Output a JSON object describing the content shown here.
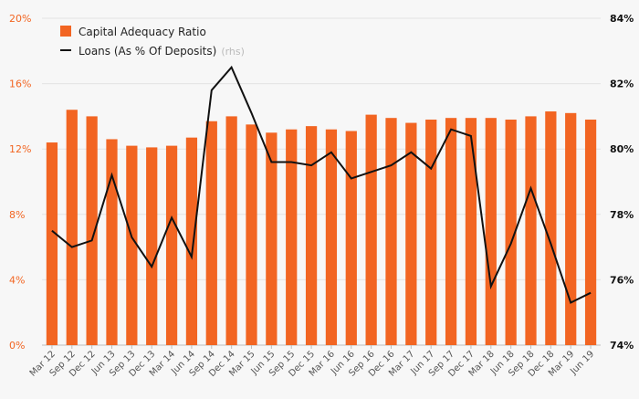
{
  "chart_data": {
    "type": "bar+line",
    "categories": [
      "Mar 12",
      "Sep 12",
      "Dec 12",
      "Jun 13",
      "Sep 13",
      "Dec 13",
      "Mar 14",
      "Jun 14",
      "Sep 14",
      "Dec 14",
      "Mar 15",
      "Jun 15",
      "Sep 15",
      "Dec 15",
      "Mar 16",
      "Jun 16",
      "Sep 16",
      "Dec 16",
      "Mar 17",
      "Jun 17",
      "Sep 17",
      "Dec 17",
      "Mar 18",
      "Jun 18",
      "Sep 18",
      "Dec 18",
      "Mar 19",
      "Jun 19"
    ],
    "series": [
      {
        "name": "Capital Adequacy Ratio",
        "type": "bar",
        "axis": "left",
        "color": "#f26522",
        "values": [
          12.4,
          14.4,
          14.0,
          12.6,
          12.2,
          12.1,
          12.2,
          12.7,
          13.7,
          14.0,
          13.5,
          13.0,
          13.2,
          13.4,
          13.2,
          13.1,
          14.1,
          13.9,
          13.6,
          13.8,
          13.9,
          13.9,
          13.9,
          13.8,
          14.0,
          14.3,
          14.2,
          13.8
        ]
      },
      {
        "name": "Loans (As % Of Deposits)",
        "name_note": "(rhs)",
        "type": "line",
        "axis": "right",
        "color": "#111111",
        "values": [
          77.5,
          77.0,
          77.2,
          79.2,
          77.3,
          76.4,
          77.9,
          76.7,
          81.8,
          82.5,
          81.1,
          79.6,
          79.6,
          79.5,
          79.9,
          79.1,
          79.3,
          79.5,
          79.9,
          79.4,
          80.6,
          80.4,
          75.8,
          77.1,
          78.8,
          77.1,
          75.3,
          75.6
        ]
      }
    ],
    "y_left": {
      "ylim": [
        0,
        20
      ],
      "ticks": [
        0,
        4,
        8,
        12,
        16,
        20
      ],
      "tick_labels": [
        "0%",
        "4%",
        "8%",
        "12%",
        "16%",
        "20%"
      ],
      "color": "#f26522"
    },
    "y_right": {
      "ylim": [
        74,
        84
      ],
      "ticks": [
        74,
        76,
        78,
        80,
        82,
        84
      ],
      "tick_labels": [
        "74%",
        "76%",
        "78%",
        "80%",
        "82%",
        "84%"
      ],
      "color": "#111111"
    },
    "grid": "horizontal",
    "legend_position": "top-left"
  }
}
